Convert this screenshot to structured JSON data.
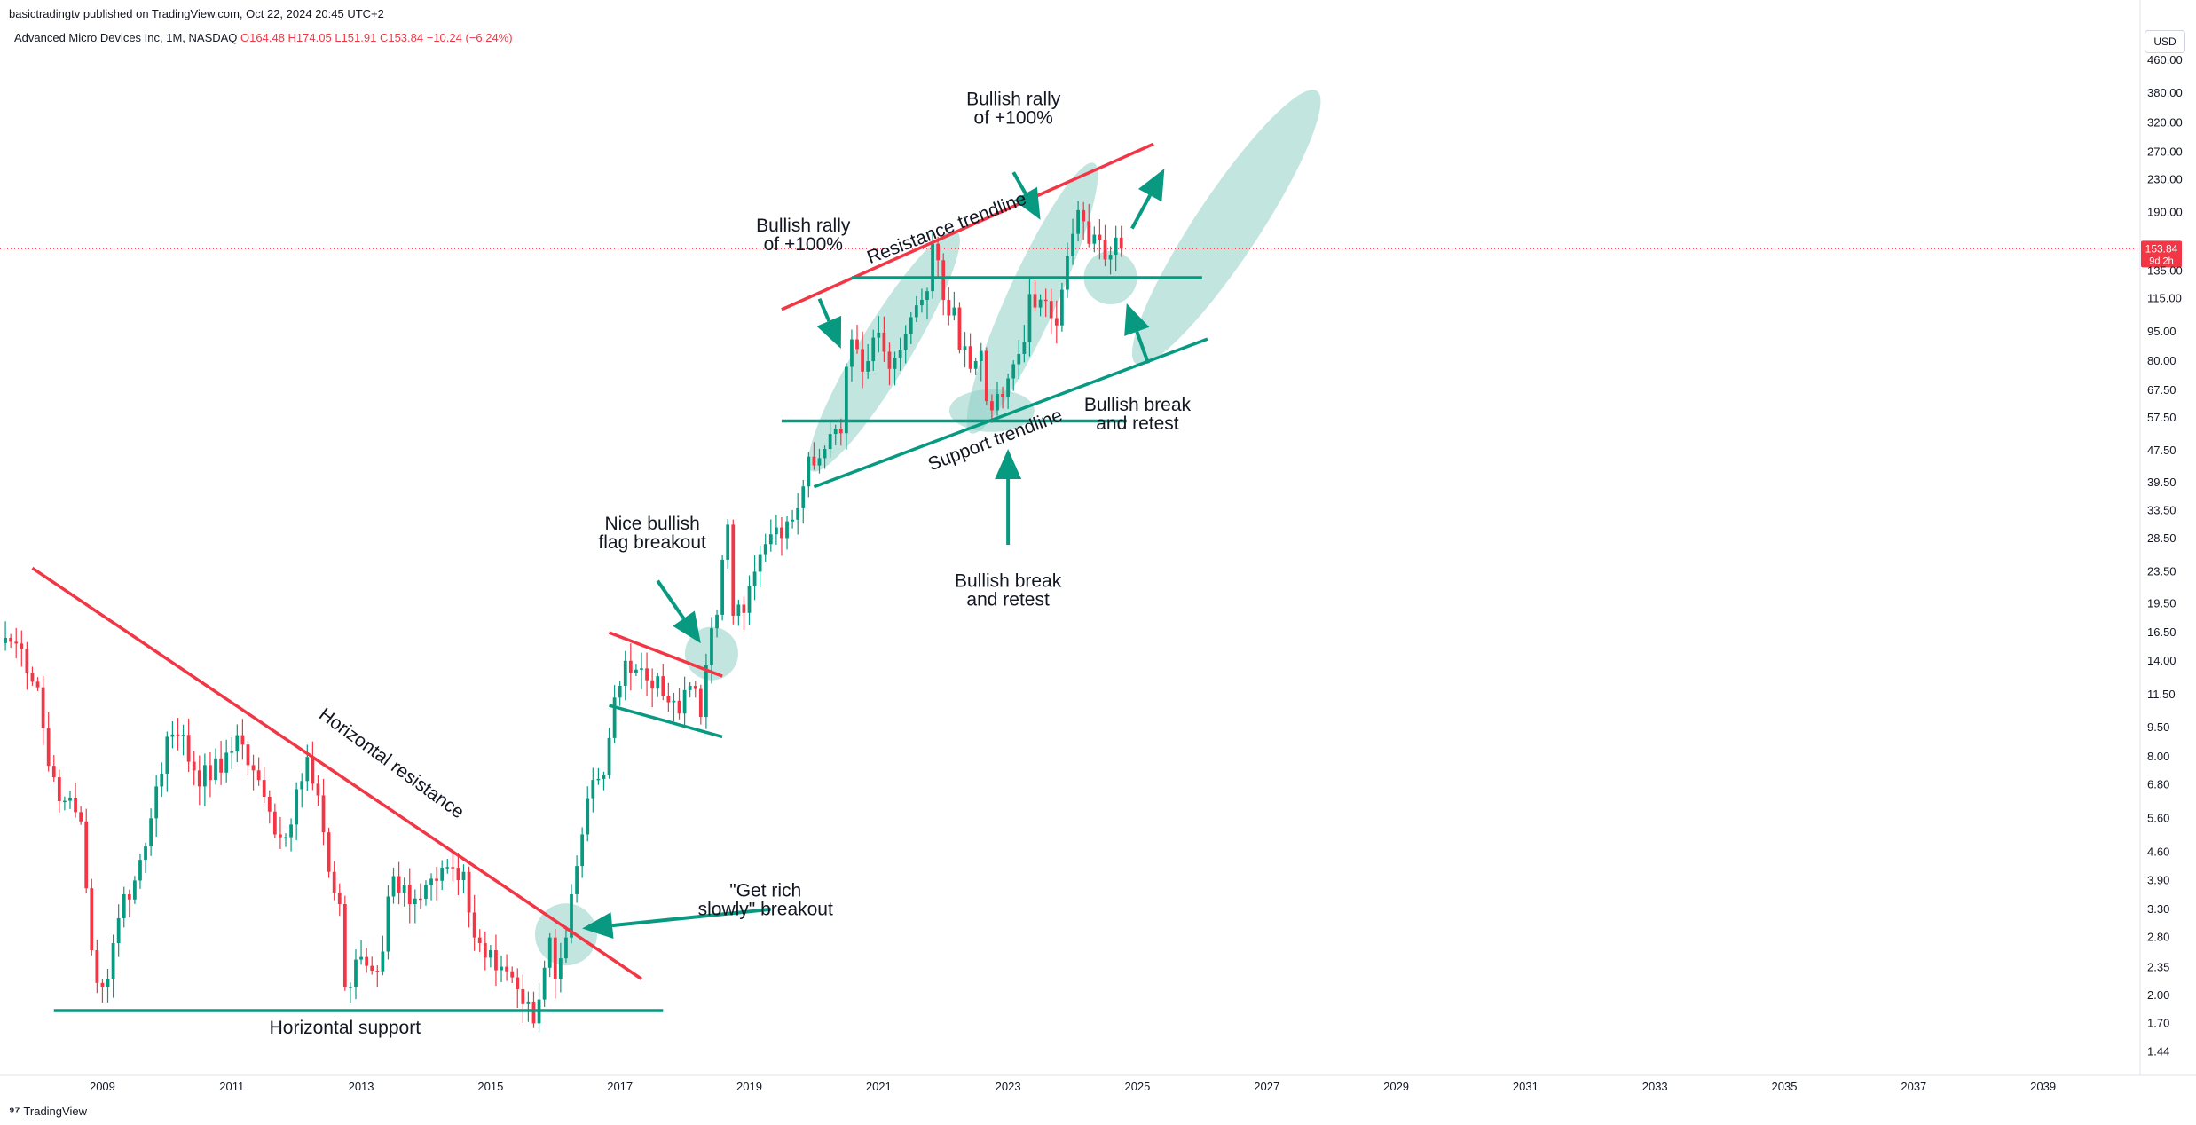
{
  "header": {
    "published": "basictradingtv published on TradingView.com, Oct 22, 2024 20:45 UTC+2",
    "instrument": "Advanced Micro Devices Inc, 1M, NASDAQ",
    "open": "O164.48",
    "high": "H174.05",
    "low": "L151.91",
    "close": "C153.84",
    "change": "−10.24 (−6.24%)"
  },
  "currency_button": "USD",
  "price_badge": {
    "price": "153.84",
    "countdown": "9d 2h",
    "color": "#f23645"
  },
  "footer": {
    "logo_icon": "tradingview-logo-icon",
    "brand": "TradingView"
  },
  "colors": {
    "up": "#089981",
    "down": "#f23645",
    "resistance_line": "#f23645",
    "support_line": "#089981",
    "highlight": "#8fd0c4",
    "arrow": "#089981"
  },
  "chart_data": {
    "type": "candlestick",
    "interval": "1M",
    "y_scale": "log",
    "ylim": [
      1.35,
      560
    ],
    "xlim": [
      "2007-06",
      "2040-07"
    ],
    "x_ticks": [
      "2009",
      "2011",
      "2013",
      "2015",
      "2017",
      "2019",
      "2021",
      "2023",
      "2025",
      "2027",
      "2029",
      "2031",
      "2033",
      "2035",
      "2037",
      "2039"
    ],
    "y_ticks": [
      "460.00",
      "380.00",
      "320.00",
      "270.00",
      "230.00",
      "190.00",
      "135.00",
      "115.00",
      "95.00",
      "80.00",
      "67.50",
      "57.50",
      "47.50",
      "39.50",
      "33.50",
      "28.50",
      "23.50",
      "19.50",
      "16.50",
      "14.00",
      "11.50",
      "9.50",
      "8.00",
      "6.80",
      "5.60",
      "4.60",
      "3.90",
      "3.30",
      "2.80",
      "2.35",
      "2.00",
      "1.70",
      "1.44"
    ],
    "last_price": 153.84,
    "anchors": [
      [
        "2007-07",
        16.0
      ],
      [
        "2007-10",
        15.0
      ],
      [
        "2008-01",
        12.0
      ],
      [
        "2008-03",
        7.6
      ],
      [
        "2008-06",
        6.2
      ],
      [
        "2008-09",
        5.5
      ],
      [
        "2008-11",
        2.6
      ],
      [
        "2008-12",
        2.15
      ],
      [
        "2009-02",
        2.2
      ],
      [
        "2009-05",
        3.6
      ],
      [
        "2009-07",
        3.9
      ],
      [
        "2009-10",
        5.6
      ],
      [
        "2010-01",
        9.0
      ],
      [
        "2010-04",
        9.1
      ],
      [
        "2010-06",
        7.4
      ],
      [
        "2010-09",
        7.0
      ],
      [
        "2010-12",
        8.2
      ],
      [
        "2011-03",
        8.6
      ],
      [
        "2011-06",
        7.0
      ],
      [
        "2011-09",
        5.1
      ],
      [
        "2011-12",
        5.4
      ],
      [
        "2012-03",
        8.0
      ],
      [
        "2012-05",
        6.4
      ],
      [
        "2012-07",
        4.1
      ],
      [
        "2012-09",
        3.4
      ],
      [
        "2012-10",
        2.1
      ],
      [
        "2013-01",
        2.5
      ],
      [
        "2013-04",
        2.3
      ],
      [
        "2013-07",
        4.0
      ],
      [
        "2013-10",
        3.4
      ],
      [
        "2014-01",
        3.8
      ],
      [
        "2014-06",
        4.2
      ],
      [
        "2014-08",
        4.1
      ],
      [
        "2014-10",
        2.8
      ],
      [
        "2015-01",
        2.6
      ],
      [
        "2015-04",
        2.3
      ],
      [
        "2015-07",
        1.9
      ],
      [
        "2015-09",
        1.7
      ],
      [
        "2015-12",
        2.8
      ],
      [
        "2016-01",
        2.2
      ],
      [
        "2016-03",
        2.8
      ],
      [
        "2016-04",
        3.6
      ],
      [
        "2016-06",
        5.1
      ],
      [
        "2016-08",
        7.0
      ],
      [
        "2016-10",
        7.2
      ],
      [
        "2016-12",
        11.3
      ],
      [
        "2017-02",
        14.0
      ],
      [
        "2017-04",
        13.3
      ],
      [
        "2017-06",
        12.5
      ],
      [
        "2017-08",
        12.8
      ],
      [
        "2017-10",
        11.0
      ],
      [
        "2017-12",
        10.3
      ],
      [
        "2018-02",
        12.1
      ],
      [
        "2018-04",
        10.1
      ],
      [
        "2018-05",
        13.7
      ],
      [
        "2018-07",
        18.3
      ],
      [
        "2018-08",
        25.2
      ],
      [
        "2018-09",
        30.9
      ],
      [
        "2018-10",
        18.2
      ],
      [
        "2018-12",
        18.5
      ],
      [
        "2019-02",
        23.5
      ],
      [
        "2019-04",
        27.6
      ],
      [
        "2019-06",
        30.4
      ],
      [
        "2019-08",
        31.5
      ],
      [
        "2019-10",
        34.0
      ],
      [
        "2019-12",
        45.9
      ],
      [
        "2020-02",
        45.5
      ],
      [
        "2020-04",
        52.4
      ],
      [
        "2020-06",
        52.6
      ],
      [
        "2020-07",
        77.4
      ],
      [
        "2020-08",
        90.8
      ],
      [
        "2020-10",
        75.3
      ],
      [
        "2020-12",
        91.7
      ],
      [
        "2021-02",
        84.5
      ],
      [
        "2021-04",
        81.6
      ],
      [
        "2021-06",
        93.9
      ],
      [
        "2021-08",
        110.7
      ],
      [
        "2021-10",
        120.2
      ],
      [
        "2021-11",
        158.4
      ],
      [
        "2021-12",
        143.9
      ],
      [
        "2022-01",
        114.2
      ],
      [
        "2022-03",
        109.3
      ],
      [
        "2022-04",
        85.5
      ],
      [
        "2022-06",
        76.5
      ],
      [
        "2022-08",
        84.9
      ],
      [
        "2022-09",
        63.4
      ],
      [
        "2022-10",
        60.1
      ],
      [
        "2022-12",
        64.8
      ],
      [
        "2023-02",
        78.6
      ],
      [
        "2023-04",
        89.4
      ],
      [
        "2023-05",
        118.2
      ],
      [
        "2023-07",
        114.4
      ],
      [
        "2023-09",
        102.8
      ],
      [
        "2023-10",
        98.5
      ],
      [
        "2023-11",
        121.2
      ],
      [
        "2023-12",
        147.4
      ],
      [
        "2024-01",
        167.7
      ],
      [
        "2024-02",
        192.5
      ],
      [
        "2024-03",
        180.5
      ],
      [
        "2024-04",
        158.4
      ],
      [
        "2024-05",
        166.9
      ],
      [
        "2024-06",
        162.2
      ],
      [
        "2024-07",
        144.5
      ],
      [
        "2024-08",
        148.6
      ],
      [
        "2024-09",
        164.1
      ],
      [
        "2024-10",
        153.84
      ]
    ],
    "trendlines": [
      {
        "name": "horizontal-resistance",
        "color": "#f23645",
        "from": [
          "2007-12",
          24.0
        ],
        "to": [
          "2017-05",
          2.2
        ]
      },
      {
        "name": "horizontal-support",
        "color": "#089981",
        "from": [
          "2008-04",
          1.83
        ],
        "to": [
          "2017-09",
          1.83
        ]
      },
      {
        "name": "flag-upper",
        "color": "#f23645",
        "from": [
          "2016-11",
          16.5
        ],
        "to": [
          "2018-08",
          12.8
        ]
      },
      {
        "name": "flag-lower",
        "color": "#089981",
        "from": [
          "2016-11",
          10.8
        ],
        "to": [
          "2018-08",
          9.0
        ]
      },
      {
        "name": "resistance-trendline",
        "color": "#f23645",
        "from": [
          "2019-07",
          108
        ],
        "to": [
          "2025-04",
          283
        ]
      },
      {
        "name": "support-trendline",
        "color": "#089981",
        "from": [
          "2020-01",
          38.5
        ],
        "to": [
          "2026-02",
          91
        ]
      },
      {
        "name": "mid-support-level",
        "color": "#089981",
        "from": [
          "2019-07",
          56.5
        ],
        "to": [
          "2024-11",
          56.5
        ]
      },
      {
        "name": "upper-support-level",
        "color": "#089981",
        "from": [
          "2020-08",
          130
        ],
        "to": [
          "2026-01",
          130
        ]
      }
    ],
    "highlights": [
      {
        "shape": "circle",
        "at": [
          "2016-03",
          2.85
        ],
        "r": 35
      },
      {
        "shape": "circle",
        "at": [
          "2018-06",
          14.6
        ],
        "r": 30
      },
      {
        "shape": "circle",
        "at": [
          "2024-08",
          130
        ],
        "r": 30
      },
      {
        "shape": "ellipse",
        "from": [
          "2020-03",
          48
        ],
        "to": [
          "2022-01",
          150
        ],
        "w": 58
      },
      {
        "shape": "ellipse",
        "from": [
          "2022-08",
          60
        ],
        "to": [
          "2024-03",
          222
        ],
        "w": 56
      },
      {
        "shape": "ellipse",
        "from": [
          "2022-09",
          60
        ],
        "to": [
          "2022-11",
          60
        ],
        "w": 48
      },
      {
        "shape": "ellipse",
        "from": [
          "2025-04",
          92
        ],
        "to": [
          "2027-07",
          330
        ],
        "w": 72
      }
    ],
    "annotations": [
      {
        "lines": [
          "Horizontal resistance"
        ],
        "at": [
          "2013-06",
          7.5
        ],
        "rotate": 36
      },
      {
        "lines": [
          "Horizontal support"
        ],
        "at": [
          "2012-10",
          1.6
        ]
      },
      {
        "lines": [
          "\"Get rich",
          "slowly\" breakout"
        ],
        "at": [
          "2019-04",
          3.55
        ]
      },
      {
        "lines": [
          "Nice bullish",
          "flag breakout"
        ],
        "at": [
          "2017-07",
          30.0
        ]
      },
      {
        "lines": [
          "Bullish rally",
          "of +100%"
        ],
        "at": [
          "2019-11",
          170
        ]
      },
      {
        "lines": [
          "Bullish rally",
          "of +100%"
        ],
        "at": [
          "2023-02",
          355
        ]
      },
      {
        "lines": [
          "Resistance trendline"
        ],
        "at": [
          "2022-02",
          168
        ],
        "rotate": -21
      },
      {
        "lines": [
          "Support trendline"
        ],
        "at": [
          "2022-11",
          49
        ],
        "rotate": -21
      },
      {
        "lines": [
          "Bullish break",
          "and retest"
        ],
        "at": [
          "2023-01",
          21.5
        ]
      },
      {
        "lines": [
          "Bullish break",
          "and retest"
        ],
        "at": [
          "2025-01",
          60
        ]
      }
    ],
    "arrows": [
      {
        "from": [
          "2017-08",
          22.3
        ],
        "to": [
          "2018-04",
          15.5
        ]
      },
      {
        "from": [
          "2019-05",
          3.3
        ],
        "to": [
          "2016-06",
          2.95
        ]
      },
      {
        "from": [
          "2020-02",
          115
        ],
        "to": [
          "2020-06",
          86
        ]
      },
      {
        "from": [
          "2023-02",
          240
        ],
        "to": [
          "2023-07",
          182
        ]
      },
      {
        "from": [
          "2024-12",
          173
        ],
        "to": [
          "2025-06",
          245
        ]
      },
      {
        "from": [
          "2023-01",
          27.5
        ],
        "to": [
          "2023-01",
          48
        ]
      },
      {
        "from": [
          "2025-03",
          79
        ],
        "to": [
          "2024-11",
          112
        ]
      }
    ]
  }
}
